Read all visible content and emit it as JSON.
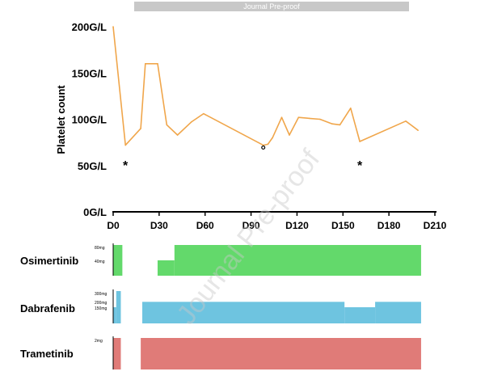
{
  "banner": {
    "text": "Journal Pre-proof"
  },
  "watermark": {
    "text": "Journal Pre-proof"
  },
  "chart_data": [
    {
      "type": "line",
      "ylabel": "Platelet count",
      "xlim": [
        0,
        210
      ],
      "ylim": [
        0,
        200
      ],
      "x_ticks": [
        0,
        30,
        60,
        90,
        120,
        150,
        180,
        210
      ],
      "x_tick_labels": [
        "D0",
        "D30",
        "D60",
        "D90",
        "D120",
        "D150",
        "D180",
        "D210"
      ],
      "y_ticks": [
        0,
        50,
        100,
        150,
        200
      ],
      "y_tick_labels": [
        "0G/L",
        "50G/L",
        "100G/L",
        "150G/L",
        "200G/L"
      ],
      "line_color": "#f0a64b",
      "series": [
        {
          "x": [
            0,
            8,
            18,
            21,
            29,
            35,
            42,
            51,
            59,
            98,
            101,
            104,
            110,
            115,
            121,
            128,
            135,
            143,
            148,
            155,
            161,
            191,
            199
          ],
          "y": [
            200,
            72,
            90,
            160,
            160,
            94,
            83,
            97,
            106,
            72,
            73,
            80,
            102,
            83,
            102,
            101,
            100,
            95,
            94,
            112,
            76,
            98,
            88
          ]
        }
      ],
      "annotations": [
        {
          "text": "*",
          "x": 8,
          "y": 55
        },
        {
          "text": "°",
          "x": 98,
          "y": 70
        },
        {
          "text": "*",
          "x": 161,
          "y": 55
        }
      ]
    },
    {
      "type": "area",
      "title": "Osimertinib",
      "color": "#63d96b",
      "y_ticks": [
        40,
        80
      ],
      "y_tick_labels": [
        "40mg",
        "80mg"
      ],
      "ylim": [
        0,
        80
      ],
      "steps": [
        {
          "start": 0,
          "end": 6,
          "dose": 80
        },
        {
          "start": 6,
          "end": 29,
          "dose": 0
        },
        {
          "start": 29,
          "end": 40,
          "dose": 40
        },
        {
          "start": 40,
          "end": 201,
          "dose": 80
        }
      ]
    },
    {
      "type": "area",
      "title": "Dabrafenib",
      "color": "#6ec4e0",
      "y_ticks": [
        150,
        200,
        300
      ],
      "y_tick_labels": [
        "150mg",
        "200mg",
        "300mg"
      ],
      "ylim": [
        0,
        300
      ],
      "steps": [
        {
          "start": 0,
          "end": 2,
          "dose": 150
        },
        {
          "start": 2,
          "end": 5,
          "dose": 300
        },
        {
          "start": 5,
          "end": 19,
          "dose": 0
        },
        {
          "start": 19,
          "end": 151,
          "dose": 200
        },
        {
          "start": 151,
          "end": 171,
          "dose": 150
        },
        {
          "start": 171,
          "end": 201,
          "dose": 200
        }
      ]
    },
    {
      "type": "area",
      "title": "Trametinib",
      "color": "#e07b78",
      "y_ticks": [
        2
      ],
      "y_tick_labels": [
        "2mg"
      ],
      "ylim": [
        0,
        2
      ],
      "steps": [
        {
          "start": 0,
          "end": 5,
          "dose": 2
        },
        {
          "start": 5,
          "end": 18,
          "dose": 0
        },
        {
          "start": 18,
          "end": 201,
          "dose": 2
        }
      ]
    }
  ]
}
